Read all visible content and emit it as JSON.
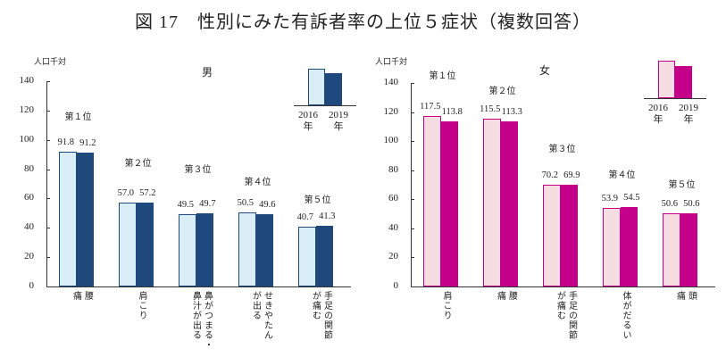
{
  "title": "図 17　性別にみた有訴者率の上位５症状（複数回答）",
  "chart_data": [
    {
      "type": "bar",
      "title": "男",
      "ylabel": "人口千対",
      "ylim": [
        0,
        140
      ],
      "yticks": [
        "0",
        "20",
        "40",
        "60",
        "80",
        "100",
        "120",
        "140"
      ],
      "categories": [
        "腰\n痛",
        "肩こり",
        "鼻がつまる・\n鼻汁が出る",
        "せきやたん\nが出る",
        "手足の関節\nが痛む"
      ],
      "ranks": [
        "第１位",
        "第２位",
        "第３位",
        "第４位",
        "第５位"
      ],
      "series": [
        {
          "name": "2016年",
          "values": [
            91.8,
            57.0,
            49.5,
            50.5,
            40.7
          ],
          "labels": [
            "91.8",
            "57.0",
            "49.5",
            "50.5",
            "40.7"
          ]
        },
        {
          "name": "2019年",
          "values": [
            91.2,
            57.2,
            49.7,
            49.6,
            41.3
          ],
          "labels": [
            "91.2",
            "57.2",
            "49.7",
            "49.6",
            "41.3"
          ]
        }
      ],
      "legend": {
        "placement": "top-right",
        "items": [
          "2016\n年",
          "2019\n年"
        ]
      },
      "colors": {
        "2016": "#daeef7",
        "2019": "#1f497d",
        "edge2016": "#1f497d"
      }
    },
    {
      "type": "bar",
      "title": "女",
      "ylabel": "人口千対",
      "ylim": [
        0,
        140
      ],
      "yticks": [
        "0",
        "20",
        "40",
        "60",
        "80",
        "100",
        "120",
        "140"
      ],
      "categories": [
        "肩こり",
        "腰\n痛",
        "手足の関節\nが痛む",
        "体がだるい",
        "頭\n痛"
      ],
      "ranks": [
        "第１位",
        "第２位",
        "第３位",
        "第４位",
        "第５位"
      ],
      "series": [
        {
          "name": "2016年",
          "values": [
            117.5,
            115.5,
            70.2,
            53.9,
            50.6
          ],
          "labels": [
            "117.5",
            "115.5",
            "70.2",
            "53.9",
            "50.6"
          ]
        },
        {
          "name": "2019年",
          "values": [
            113.8,
            113.3,
            69.9,
            54.5,
            50.6
          ],
          "labels": [
            "113.8",
            "113.3",
            "69.9",
            "54.5",
            "50.6"
          ]
        }
      ],
      "legend": {
        "placement": "top-right",
        "items": [
          "2016\n年",
          "2019\n年"
        ]
      },
      "colors": {
        "2016": "#f5dde2",
        "2019": "#c4008a",
        "edge2016": "#c4008a"
      }
    }
  ]
}
